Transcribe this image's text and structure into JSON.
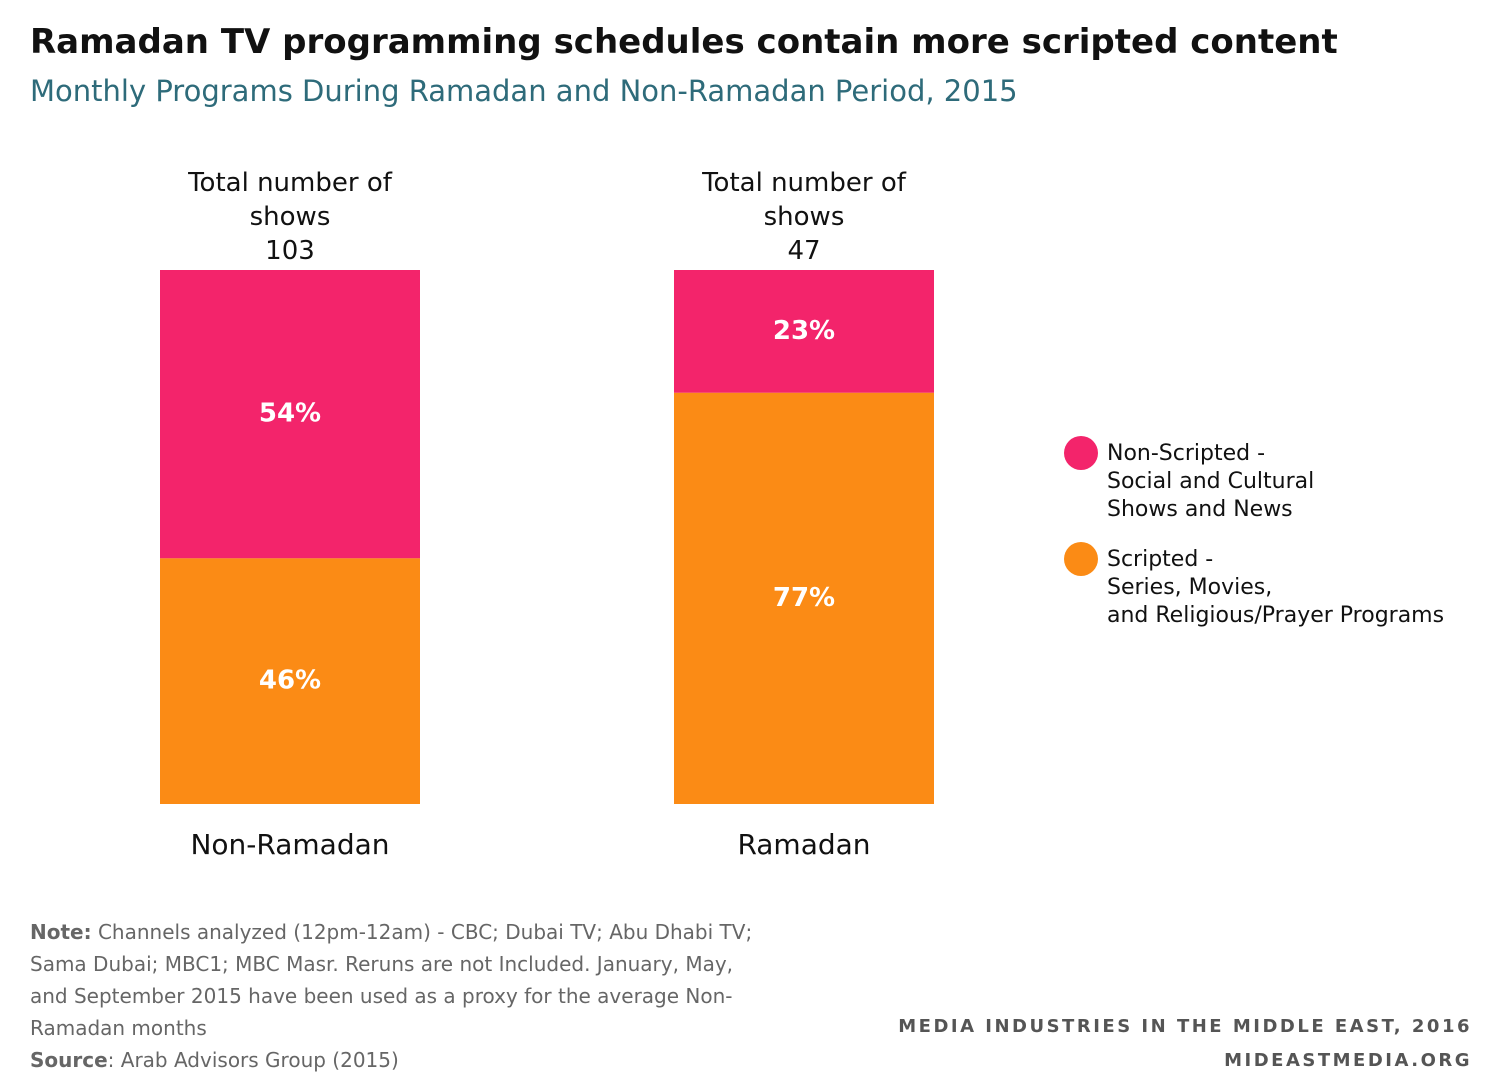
{
  "chart_data": {
    "type": "stacked_bar_100",
    "title": "Ramadan TV programming schedules contain more scripted content",
    "subtitle": "Monthly Programs During Ramadan and Non-Ramadan Period, 2015",
    "categories": [
      "Non-Ramadan",
      "Ramadan"
    ],
    "total_label": "Total number of shows",
    "totals": [
      103,
      47
    ],
    "series": [
      {
        "name": "Non-Scripted -\nSocial and Cultural\nShows and News",
        "color": "#f3246b",
        "values": [
          54,
          23
        ],
        "value_labels": [
          "54%",
          "23%"
        ]
      },
      {
        "name": "Scripted -\nSeries, Movies,\nand Religious/Prayer Programs",
        "color": "#fb8b15",
        "values": [
          46,
          77
        ],
        "value_labels": [
          "46%",
          "77%"
        ]
      }
    ],
    "legend": "right",
    "note": {
      "label": "Note:",
      "text": " Channels analyzed (12pm-12am) - CBC; Dubai TV; Abu Dhabi TV; Sama Dubai; MBC1; MBC Masr. Reruns are not Included. January, May, and September 2015 have been used as a proxy for the average Non-Ramadan months"
    },
    "source": {
      "label": "Source",
      "text": ": Arab Advisors Group (2015)"
    },
    "footer": [
      "MEDIA INDUSTRIES IN THE MIDDLE EAST, 2016",
      "MIDEASTMEDIA.ORG"
    ]
  }
}
